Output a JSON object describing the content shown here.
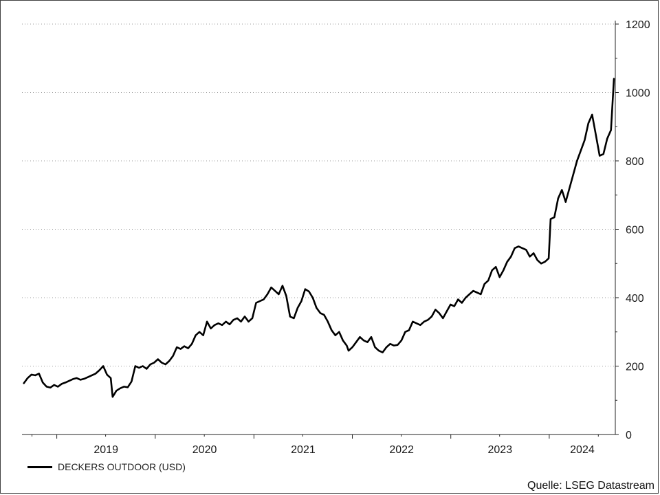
{
  "chart_data": {
    "type": "line",
    "title": "",
    "xlabel": "",
    "ylabel": "",
    "ylim": [
      0,
      1200
    ],
    "y_ticks": [
      0,
      200,
      400,
      600,
      800,
      1000,
      1200
    ],
    "y_axis_side": "right",
    "grid": "horizontal dotted",
    "x_tick_labels": [
      "2019",
      "2020",
      "2021",
      "2022",
      "2023",
      "2024"
    ],
    "legend_position": "bottom-left",
    "series": [
      {
        "name": "DECKERS OUTDOOR (USD)",
        "color": "#000000",
        "points": [
          [
            "2018-09-01",
            150
          ],
          [
            "2018-09-15",
            165
          ],
          [
            "2018-09-29",
            175
          ],
          [
            "2018-10-13",
            173
          ],
          [
            "2018-10-27",
            178
          ],
          [
            "2018-11-10",
            152
          ],
          [
            "2018-11-24",
            140
          ],
          [
            "2018-12-08",
            137
          ],
          [
            "2018-12-22",
            145
          ],
          [
            "2019-01-05",
            140
          ],
          [
            "2019-01-19",
            148
          ],
          [
            "2019-02-02",
            152
          ],
          [
            "2019-02-16",
            157
          ],
          [
            "2019-03-02",
            162
          ],
          [
            "2019-03-16",
            165
          ],
          [
            "2019-03-30",
            160
          ],
          [
            "2019-04-13",
            163
          ],
          [
            "2019-04-27",
            168
          ],
          [
            "2019-05-11",
            173
          ],
          [
            "2019-05-25",
            178
          ],
          [
            "2019-06-08",
            188
          ],
          [
            "2019-06-22",
            200
          ],
          [
            "2019-07-06",
            175
          ],
          [
            "2019-07-20",
            165
          ],
          [
            "2019-07-27",
            110
          ],
          [
            "2019-08-10",
            128
          ],
          [
            "2019-08-24",
            135
          ],
          [
            "2019-09-07",
            140
          ],
          [
            "2019-09-21",
            138
          ],
          [
            "2019-10-05",
            155
          ],
          [
            "2019-10-19",
            200
          ],
          [
            "2019-11-02",
            195
          ],
          [
            "2019-11-16",
            200
          ],
          [
            "2019-11-30",
            192
          ],
          [
            "2019-12-14",
            205
          ],
          [
            "2019-12-28",
            210
          ],
          [
            "2020-01-11",
            220
          ],
          [
            "2020-01-25",
            210
          ],
          [
            "2020-02-08",
            205
          ],
          [
            "2020-02-22",
            215
          ],
          [
            "2020-03-07",
            230
          ],
          [
            "2020-03-21",
            255
          ],
          [
            "2020-04-04",
            250
          ],
          [
            "2020-04-18",
            258
          ],
          [
            "2020-05-02",
            252
          ],
          [
            "2020-05-16",
            265
          ],
          [
            "2020-05-30",
            290
          ],
          [
            "2020-06-13",
            300
          ],
          [
            "2020-06-27",
            290
          ],
          [
            "2020-07-11",
            330
          ],
          [
            "2020-07-25",
            310
          ],
          [
            "2020-08-08",
            320
          ],
          [
            "2020-08-22",
            325
          ],
          [
            "2020-09-05",
            320
          ],
          [
            "2020-09-19",
            330
          ],
          [
            "2020-10-03",
            322
          ],
          [
            "2020-10-17",
            335
          ],
          [
            "2020-10-31",
            340
          ],
          [
            "2020-11-14",
            330
          ],
          [
            "2020-11-28",
            345
          ],
          [
            "2020-12-12",
            330
          ],
          [
            "2020-12-26",
            340
          ],
          [
            "2021-01-09",
            385
          ],
          [
            "2021-01-23",
            390
          ],
          [
            "2021-02-06",
            395
          ],
          [
            "2021-02-20",
            410
          ],
          [
            "2021-03-06",
            430
          ],
          [
            "2021-03-20",
            420
          ],
          [
            "2021-04-03",
            410
          ],
          [
            "2021-04-17",
            435
          ],
          [
            "2021-05-01",
            405
          ],
          [
            "2021-05-15",
            345
          ],
          [
            "2021-05-29",
            340
          ],
          [
            "2021-06-12",
            370
          ],
          [
            "2021-06-26",
            390
          ],
          [
            "2021-07-10",
            425
          ],
          [
            "2021-07-24",
            418
          ],
          [
            "2021-08-07",
            400
          ],
          [
            "2021-08-21",
            370
          ],
          [
            "2021-09-04",
            355
          ],
          [
            "2021-09-18",
            350
          ],
          [
            "2021-10-02",
            330
          ],
          [
            "2021-10-16",
            305
          ],
          [
            "2021-10-30",
            290
          ],
          [
            "2021-11-13",
            300
          ],
          [
            "2021-11-27",
            275
          ],
          [
            "2021-12-11",
            260
          ],
          [
            "2021-12-18",
            245
          ],
          [
            "2022-01-01",
            255
          ],
          [
            "2022-01-15",
            270
          ],
          [
            "2022-01-29",
            285
          ],
          [
            "2022-02-12",
            275
          ],
          [
            "2022-02-26",
            270
          ],
          [
            "2022-03-12",
            285
          ],
          [
            "2022-03-26",
            255
          ],
          [
            "2022-04-09",
            245
          ],
          [
            "2022-04-23",
            240
          ],
          [
            "2022-05-07",
            255
          ],
          [
            "2022-05-21",
            265
          ],
          [
            "2022-06-04",
            260
          ],
          [
            "2022-06-18",
            262
          ],
          [
            "2022-07-02",
            275
          ],
          [
            "2022-07-16",
            300
          ],
          [
            "2022-07-30",
            305
          ],
          [
            "2022-08-13",
            330
          ],
          [
            "2022-08-27",
            325
          ],
          [
            "2022-09-10",
            320
          ],
          [
            "2022-09-24",
            330
          ],
          [
            "2022-10-08",
            335
          ],
          [
            "2022-10-22",
            345
          ],
          [
            "2022-11-05",
            365
          ],
          [
            "2022-11-19",
            355
          ],
          [
            "2022-12-03",
            340
          ],
          [
            "2022-12-17",
            360
          ],
          [
            "2022-12-31",
            380
          ],
          [
            "2023-01-14",
            375
          ],
          [
            "2023-01-28",
            395
          ],
          [
            "2023-02-11",
            385
          ],
          [
            "2023-02-25",
            400
          ],
          [
            "2023-03-11",
            410
          ],
          [
            "2023-03-25",
            420
          ],
          [
            "2023-04-08",
            415
          ],
          [
            "2023-04-22",
            410
          ],
          [
            "2023-05-06",
            440
          ],
          [
            "2023-05-20",
            450
          ],
          [
            "2023-06-03",
            480
          ],
          [
            "2023-06-17",
            490
          ],
          [
            "2023-07-01",
            460
          ],
          [
            "2023-07-15",
            480
          ],
          [
            "2023-07-29",
            505
          ],
          [
            "2023-08-12",
            520
          ],
          [
            "2023-08-26",
            545
          ],
          [
            "2023-09-09",
            550
          ],
          [
            "2023-09-23",
            545
          ],
          [
            "2023-10-07",
            540
          ],
          [
            "2023-10-21",
            520
          ],
          [
            "2023-11-04",
            530
          ],
          [
            "2023-11-18",
            510
          ],
          [
            "2023-12-02",
            500
          ],
          [
            "2023-12-16",
            505
          ],
          [
            "2023-12-30",
            515
          ],
          [
            "2024-01-06",
            630
          ],
          [
            "2024-01-20",
            635
          ],
          [
            "2024-02-03",
            690
          ],
          [
            "2024-02-17",
            715
          ],
          [
            "2024-03-02",
            680
          ],
          [
            "2024-03-16",
            720
          ],
          [
            "2024-03-30",
            760
          ],
          [
            "2024-04-13",
            800
          ],
          [
            "2024-04-27",
            830
          ],
          [
            "2024-05-11",
            860
          ],
          [
            "2024-05-25",
            910
          ],
          [
            "2024-06-08",
            935
          ],
          [
            "2024-06-22",
            875
          ],
          [
            "2024-07-06",
            815
          ],
          [
            "2024-07-20",
            820
          ],
          [
            "2024-08-03",
            865
          ],
          [
            "2024-08-17",
            890
          ],
          [
            "2024-08-28",
            1040
          ]
        ]
      }
    ]
  },
  "legend": {
    "label": "DECKERS OUTDOOR (USD)"
  },
  "source": "Quelle: LSEG Datastream"
}
